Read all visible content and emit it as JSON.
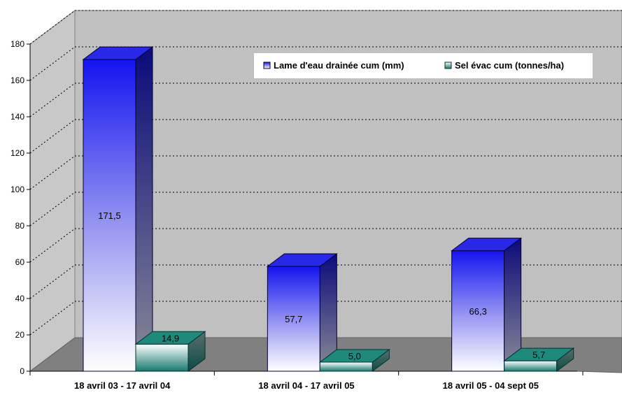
{
  "chart_data": {
    "type": "bar",
    "categories": [
      "18 avril 03 - 17 avril 04",
      "18 avril 04 - 17 avril 05",
      "18 avril 05 - 04 sept 05"
    ],
    "series": [
      {
        "name": "Lame d'eau drainée cum (mm)",
        "values": [
          171.5,
          57.7,
          66.3
        ],
        "labels": [
          "171,5",
          "57,7",
          "66,3"
        ],
        "color": "#1f1fe0"
      },
      {
        "name": "Sel évac cum (tonnes/ha)",
        "values": [
          14.9,
          5.0,
          5.7
        ],
        "labels": [
          "14,9",
          "5,0",
          "5,7"
        ],
        "color": "#1a8a7a"
      }
    ],
    "ylim": [
      0,
      180
    ],
    "yticks": [
      0,
      20,
      40,
      60,
      80,
      100,
      120,
      140,
      160,
      180
    ],
    "grid": true,
    "legend_position": "top-right",
    "title": "",
    "xlabel": "",
    "ylabel": ""
  }
}
